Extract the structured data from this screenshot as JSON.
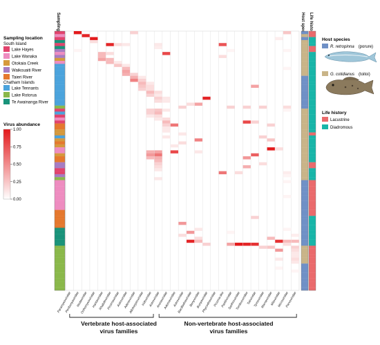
{
  "chart_data": {
    "type": "heatmap",
    "title": "",
    "colorbar": {
      "title": "Virus abundance",
      "ticks": [
        "1.00",
        "0.75",
        "0.50",
        "0.25",
        "0.00"
      ],
      "min": 0,
      "max": 1,
      "low_color": "#ffffff",
      "high_color": "#e31a1c"
    },
    "sampling_header": "Sampling location",
    "host_header": "Host species",
    "life_header": "Life history",
    "virus_families": [
      "Paramyxoviridae",
      "Peribunyaviridae",
      "Nodaviridae",
      "Orthomyxoviridae",
      "Hantaviridae",
      "Rhabdoviridae",
      "Picornaviridae",
      "Astroviridae",
      "Adenoviridae",
      "Alloherpesviridae",
      "Iridoviridae",
      "Astroviridae",
      "Arenaviridae",
      "Adomaviridae",
      "Astroviridae",
      "Bacilladnaviridae",
      "Benyviridae",
      "Bunyaviridae",
      "Phycodnaviridae",
      "Picorna-like",
      "Partitiviridae",
      "Sarthroviridae",
      "Tombusviridae",
      "Totiviridae",
      "Tymoviridae",
      "Marnaviridae",
      "Mitoviridae",
      "Microviridae",
      "Parvoviridae"
    ],
    "group_labels": {
      "vertebrate_line1": "Vertebrate host-associated",
      "vertebrate_line2": "virus families",
      "nonvertebrate_line1": "Non-vertebrate host-associated",
      "nonvertebrate_line2": "virus families"
    },
    "vertebrate_column_count": 11,
    "location_legend": {
      "title": "Sampling location",
      "south_island_label": "South Island",
      "chatham_label": "Chatham Islands",
      "south_island": [
        {
          "name": "Lake Hayes",
          "color": "#e2436d"
        },
        {
          "name": "Lake Wanaka",
          "color": "#ee8cc0"
        },
        {
          "name": "Otokaia Creek",
          "color": "#d6993c"
        },
        {
          "name": "Waikouaiti River",
          "color": "#a77cc2"
        },
        {
          "name": "Taieri River",
          "color": "#e5782e"
        }
      ],
      "chatham": [
        {
          "name": "Lake Tennants",
          "color": "#4ba3dc"
        },
        {
          "name": "Lake Rotorua",
          "color": "#8ab84a"
        },
        {
          "name": "Te Awainanga River",
          "color": "#19937a"
        }
      ]
    },
    "host_legend": {
      "title": "Host species",
      "items": [
        {
          "name": "R. retropinna",
          "common": "(porure)",
          "color": "#6f90c6"
        },
        {
          "name": "G. cotidianus",
          "common": "(toitoi)",
          "color": "#c9b488"
        }
      ]
    },
    "life_legend": {
      "title": "Life history",
      "items": [
        {
          "name": "Lacustrine",
          "color": "#ea6a6c"
        },
        {
          "name": "Diadromous",
          "color": "#18b5a8"
        }
      ]
    },
    "row_locations": [
      "Lake Hayes",
      "Lake Wanaka",
      "Lake Hayes",
      "Te Awainanga River",
      "Lake Hayes",
      "Te Awainanga River",
      "Waikouaiti River",
      "Lake Wanaka",
      "Waikouaiti River",
      "Otokaia Creek",
      "Lake Wanaka",
      "Lake Tennants",
      "Lake Tennants",
      "Lake Tennants",
      "Lake Tennants",
      "Lake Tennants",
      "Lake Tennants",
      "Lake Tennants",
      "Lake Tennants",
      "Lake Tennants",
      "Lake Tennants",
      "Lake Tennants",
      "Lake Tennants",
      "Lake Tennants",
      "Lake Tennants",
      "Lake Rotorua",
      "Lake Hayes",
      "Lake Tennants",
      "Lake Hayes",
      "Lake Wanaka",
      "Lake Hayes",
      "Taieri River",
      "Taieri River",
      "Otokaia Creek",
      "Otokaia Creek",
      "Lake Tennants",
      "Otokaia Creek",
      "Taieri River",
      "Otokaia Creek",
      "Lake Wanaka",
      "Lake Wanaka",
      "Otokaia Creek",
      "Taieri River",
      "Taieri River",
      "Waikouaiti River",
      "Waikouaiti River",
      "Lake Hayes",
      "Lake Hayes",
      "Waikouaiti River",
      "Lake Rotorua",
      "Lake Wanaka",
      "Lake Wanaka",
      "Lake Wanaka",
      "Lake Wanaka",
      "Lake Wanaka",
      "Lake Wanaka",
      "Lake Wanaka",
      "Lake Wanaka",
      "Lake Wanaka",
      "Lake Wanaka",
      "Taieri River",
      "Taieri River",
      "Taieri River",
      "Taieri River",
      "Taieri River",
      "Taieri River",
      "Te Awainanga River",
      "Te Awainanga River",
      "Te Awainanga River",
      "Te Awainanga River",
      "Te Awainanga River",
      "Te Awainanga River",
      "Lake Rotorua",
      "Lake Rotorua",
      "Lake Rotorua",
      "Lake Rotorua",
      "Lake Rotorua",
      "Lake Rotorua",
      "Lake Rotorua",
      "Lake Rotorua",
      "Lake Rotorua",
      "Lake Rotorua",
      "Lake Rotorua",
      "Lake Rotorua",
      "Lake Rotorua",
      "Lake Rotorua",
      "Lake Rotorua"
    ],
    "row_hosts": [
      "R. retropinna",
      "G. cotidianus",
      "R. retropinna",
      "G. cotidianus",
      "G. cotidianus",
      "G. cotidianus",
      "G. cotidianus",
      "G. cotidianus",
      "G. cotidianus",
      "G. cotidianus",
      "G. cotidianus",
      "G. cotidianus",
      "G. cotidianus",
      "G. cotidianus",
      "G. cotidianus",
      "R. retropinna",
      "R. retropinna",
      "R. retropinna",
      "R. retropinna",
      "R. retropinna",
      "R. retropinna",
      "R. retropinna",
      "R. retropinna",
      "R. retropinna",
      "R. retropinna",
      "R. retropinna",
      "G. cotidianus",
      "G. cotidianus",
      "G. cotidianus",
      "G. cotidianus",
      "G. cotidianus",
      "G. cotidianus",
      "G. cotidianus",
      "G. cotidianus",
      "G. cotidianus",
      "G. cotidianus",
      "G. cotidianus",
      "G. cotidianus",
      "G. cotidianus",
      "G. cotidianus",
      "G. cotidianus",
      "G. cotidianus",
      "G. cotidianus",
      "G. cotidianus",
      "G. cotidianus",
      "G. cotidianus",
      "G. cotidianus",
      "G. cotidianus",
      "G. cotidianus",
      "G. cotidianus",
      "R. retropinna",
      "R. retropinna",
      "R. retropinna",
      "R. retropinna",
      "R. retropinna",
      "R. retropinna",
      "R. retropinna",
      "R. retropinna",
      "R. retropinna",
      "R. retropinna",
      "R. retropinna",
      "R. retropinna",
      "R. retropinna",
      "R. retropinna",
      "R. retropinna",
      "R. retropinna",
      "R. retropinna",
      "R. retropinna",
      "R. retropinna",
      "R. retropinna",
      "R. retropinna",
      "R. retropinna",
      "G. cotidianus",
      "G. cotidianus",
      "G. cotidianus",
      "G. cotidianus",
      "G. cotidianus",
      "G. cotidianus",
      "R. retropinna",
      "R. retropinna",
      "R. retropinna",
      "R. retropinna",
      "R. retropinna",
      "R. retropinna",
      "R. retropinna",
      "R. retropinna",
      "R. retropinna"
    ],
    "row_life_history": [
      "Lacustrine",
      "Lacustrine",
      "Diadromous",
      "Diadromous",
      "Diadromous",
      "Lacustrine",
      "Lacustrine",
      "Diadromous",
      "Diadromous",
      "Diadromous",
      "Diadromous",
      "Diadromous",
      "Diadromous",
      "Diadromous",
      "Diadromous",
      "Diadromous",
      "Diadromous",
      "Diadromous",
      "Diadromous",
      "Diadromous",
      "Diadromous",
      "Diadromous",
      "Diadromous",
      "Diadromous",
      "Diadromous",
      "Diadromous",
      "Diadromous",
      "Diadromous",
      "Diadromous",
      "Diadromous",
      "Diadromous",
      "Diadromous",
      "Diadromous",
      "Diadromous",
      "Lacustrine",
      "Diadromous",
      "Diadromous",
      "Diadromous",
      "Diadromous",
      "Diadromous",
      "Diadromous",
      "Diadromous",
      "Diadromous",
      "Diadromous",
      "Lacustrine",
      "Lacustrine",
      "Diadromous",
      "Diadromous",
      "Diadromous",
      "Diadromous",
      "Lacustrine",
      "Lacustrine",
      "Lacustrine",
      "Lacustrine",
      "Lacustrine",
      "Lacustrine",
      "Lacustrine",
      "Lacustrine",
      "Lacustrine",
      "Lacustrine",
      "Lacustrine",
      "Lacustrine",
      "Diadromous",
      "Diadromous",
      "Diadromous",
      "Diadromous",
      "Diadromous",
      "Diadromous",
      "Diadromous",
      "Diadromous",
      "Diadromous",
      "Diadromous",
      "Lacustrine",
      "Lacustrine",
      "Lacustrine",
      "Lacustrine",
      "Lacustrine",
      "Lacustrine",
      "Lacustrine",
      "Lacustrine",
      "Lacustrine",
      "Lacustrine",
      "Lacustrine",
      "Lacustrine",
      "Lacustrine",
      "Lacustrine",
      "Lacustrine"
    ],
    "cells": [
      [
        0,
        1,
        1.0
      ],
      [
        0,
        8,
        0.2
      ],
      [
        0,
        27,
        0.25
      ],
      [
        1,
        2,
        0.95
      ],
      [
        2,
        3,
        1.0
      ],
      [
        2,
        26,
        0.08
      ],
      [
        3,
        3,
        0.15
      ],
      [
        4,
        5,
        0.95
      ],
      [
        4,
        6,
        0.15
      ],
      [
        4,
        7,
        0.1
      ],
      [
        4,
        11,
        0.1
      ],
      [
        4,
        19,
        0.75
      ],
      [
        5,
        11,
        0.08
      ],
      [
        6,
        1,
        0.05
      ],
      [
        6,
        20,
        0.05
      ],
      [
        6,
        27,
        0.05
      ],
      [
        7,
        4,
        0.3
      ],
      [
        7,
        5,
        0.15
      ],
      [
        7,
        12,
        0.8
      ],
      [
        8,
        4,
        0.3
      ],
      [
        8,
        19,
        0.15
      ],
      [
        9,
        4,
        0.4
      ],
      [
        9,
        5,
        0.3
      ],
      [
        10,
        5,
        0.3
      ],
      [
        10,
        6,
        0.1
      ],
      [
        11,
        6,
        0.25
      ],
      [
        11,
        7,
        0.1
      ],
      [
        12,
        7,
        0.3
      ],
      [
        12,
        27,
        0.05
      ],
      [
        13,
        7,
        0.4
      ],
      [
        14,
        7,
        0.35
      ],
      [
        14,
        8,
        0.2
      ],
      [
        15,
        8,
        0.35
      ],
      [
        15,
        9,
        0.1
      ],
      [
        16,
        8,
        0.55
      ],
      [
        16,
        9,
        0.2
      ],
      [
        17,
        9,
        0.3
      ],
      [
        17,
        10,
        0.1
      ],
      [
        18,
        9,
        0.25
      ],
      [
        18,
        10,
        0.15
      ],
      [
        18,
        23,
        0.4
      ],
      [
        19,
        9,
        0.2
      ],
      [
        19,
        10,
        0.15
      ],
      [
        20,
        10,
        0.3
      ],
      [
        20,
        11,
        0.15
      ],
      [
        21,
        10,
        0.2
      ],
      [
        21,
        11,
        0.1
      ],
      [
        22,
        11,
        0.2
      ],
      [
        22,
        12,
        0.1
      ],
      [
        22,
        17,
        0.95
      ],
      [
        23,
        11,
        0.15
      ],
      [
        23,
        12,
        0.1
      ],
      [
        24,
        16,
        0.4
      ],
      [
        24,
        15,
        0.15
      ],
      [
        25,
        14,
        0.2
      ],
      [
        25,
        20,
        0.2
      ],
      [
        25,
        22,
        0.2
      ],
      [
        25,
        24,
        0.2
      ],
      [
        25,
        27,
        0.15
      ],
      [
        26,
        10,
        0.2
      ],
      [
        26,
        11,
        0.25
      ],
      [
        26,
        12,
        0.1
      ],
      [
        26,
        27,
        0.05
      ],
      [
        27,
        10,
        0.2
      ],
      [
        27,
        11,
        0.3
      ],
      [
        28,
        10,
        0.1
      ],
      [
        28,
        11,
        0.15
      ],
      [
        29,
        11,
        0.1
      ],
      [
        29,
        12,
        0.15
      ],
      [
        30,
        12,
        0.3
      ],
      [
        30,
        22,
        0.8
      ],
      [
        30,
        23,
        0.2
      ],
      [
        31,
        12,
        0.2
      ],
      [
        31,
        13,
        0.6
      ],
      [
        31,
        25,
        0.2
      ],
      [
        32,
        12,
        0.1
      ],
      [
        33,
        12,
        0.1
      ],
      [
        34,
        14,
        0.1
      ],
      [
        35,
        12,
        0.1
      ],
      [
        35,
        24,
        0.2
      ],
      [
        36,
        16,
        0.55
      ],
      [
        36,
        25,
        0.25
      ],
      [
        37,
        14,
        0.15
      ],
      [
        38,
        13,
        0.1
      ],
      [
        39,
        25,
        1.0
      ],
      [
        39,
        26,
        0.15
      ],
      [
        40,
        10,
        0.35
      ],
      [
        40,
        11,
        0.4
      ],
      [
        40,
        13,
        0.8
      ],
      [
        40,
        16,
        0.1
      ],
      [
        41,
        10,
        0.45
      ],
      [
        41,
        11,
        0.6
      ],
      [
        41,
        23,
        0.7
      ],
      [
        42,
        10,
        0.3
      ],
      [
        42,
        11,
        0.35
      ],
      [
        42,
        22,
        0.45
      ],
      [
        43,
        11,
        0.3
      ],
      [
        44,
        11,
        0.2
      ],
      [
        44,
        24,
        0.15
      ],
      [
        45,
        11,
        0.15
      ],
      [
        45,
        22,
        0.35
      ],
      [
        46,
        11,
        0.1
      ],
      [
        47,
        19,
        0.6
      ],
      [
        47,
        21,
        0.15
      ],
      [
        47,
        27,
        0.08
      ],
      [
        48,
        27,
        0.05
      ],
      [
        49,
        11,
        0.1
      ],
      [
        50,
        27,
        0.05
      ],
      [
        55,
        27,
        0.05
      ],
      [
        62,
        23,
        0.2
      ],
      [
        64,
        14,
        0.45
      ],
      [
        66,
        16,
        0.1
      ],
      [
        66,
        27,
        0.05
      ],
      [
        67,
        15,
        0.45
      ],
      [
        67,
        20,
        0.05
      ],
      [
        68,
        14,
        0.15
      ],
      [
        68,
        28,
        0.08
      ],
      [
        69,
        16,
        0.15
      ],
      [
        69,
        25,
        0.3
      ],
      [
        70,
        15,
        0.95
      ],
      [
        70,
        16,
        0.3
      ],
      [
        70,
        26,
        0.9
      ],
      [
        70,
        27,
        0.3
      ],
      [
        70,
        28,
        0.3
      ],
      [
        71,
        17,
        0.2
      ],
      [
        71,
        20,
        0.4
      ],
      [
        71,
        21,
        1.0
      ],
      [
        71,
        22,
        0.95
      ],
      [
        71,
        23,
        0.9
      ],
      [
        71,
        27,
        0.15
      ],
      [
        72,
        24,
        0.2
      ],
      [
        72,
        25,
        0.25
      ],
      [
        72,
        28,
        0.2
      ],
      [
        73,
        26,
        0.45
      ],
      [
        73,
        28,
        0.15
      ],
      [
        74,
        28,
        0.1
      ],
      [
        75,
        28,
        0.1
      ],
      [
        76,
        26,
        0.1
      ],
      [
        76,
        28,
        0.15
      ],
      [
        77,
        28,
        0.1
      ],
      [
        79,
        26,
        0.05
      ],
      [
        80,
        28,
        0.05
      ]
    ]
  }
}
